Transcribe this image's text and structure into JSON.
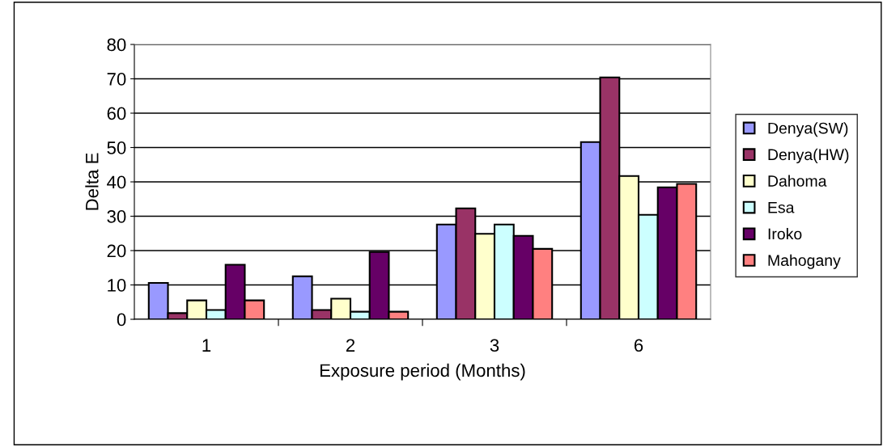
{
  "chart_data": {
    "type": "bar",
    "xlabel": "Exposure period (Months)",
    "ylabel": "Delta E",
    "categories": [
      "1",
      "2",
      "3",
      "6"
    ],
    "series": [
      {
        "name": "Denya(SW)",
        "color": "#9999ff",
        "values": [
          10.6,
          12.5,
          27.6,
          51.6
        ]
      },
      {
        "name": "Denya(HW)",
        "color": "#993366",
        "values": [
          1.8,
          2.7,
          32.3,
          70.4
        ]
      },
      {
        "name": "Dahoma",
        "color": "#ffffcc",
        "values": [
          5.5,
          6.0,
          24.9,
          41.7
        ]
      },
      {
        "name": "Esa",
        "color": "#ccffff",
        "values": [
          2.7,
          2.2,
          27.6,
          30.4
        ]
      },
      {
        "name": "Iroko",
        "color": "#660066",
        "values": [
          15.9,
          19.6,
          24.3,
          38.4
        ]
      },
      {
        "name": "Mahogany",
        "color": "#ff8080",
        "values": [
          5.5,
          2.2,
          20.5,
          39.4
        ]
      }
    ],
    "ylim": [
      0,
      80
    ],
    "yticks": [
      0,
      10,
      20,
      30,
      40,
      50,
      60,
      70,
      80
    ],
    "grid": "y",
    "legend": "right"
  }
}
